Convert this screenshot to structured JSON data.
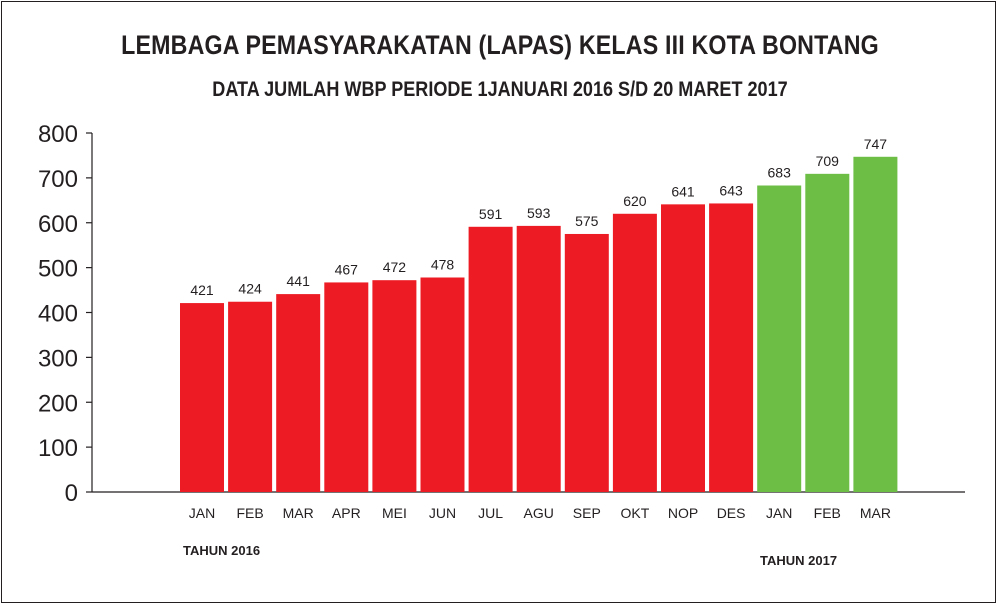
{
  "chart_data": {
    "type": "bar",
    "title": "LEMBAGA PEMASYARAKATAN (LAPAS) KELAS III KOTA BONTANG",
    "subtitle": "DATA JUMLAH WBP PERIODE 1JANUARI 2016 S/D 20 MARET 2017",
    "categories": [
      "JAN",
      "FEB",
      "MAR",
      "APR",
      "MEI",
      "JUN",
      "JUL",
      "AGU",
      "SEP",
      "OKT",
      "NOP",
      "DES",
      "JAN",
      "FEB",
      "MAR"
    ],
    "values": [
      421,
      424,
      441,
      467,
      472,
      478,
      591,
      593,
      575,
      620,
      641,
      643,
      683,
      709,
      747
    ],
    "data_labels": [
      "421",
      "424",
      "441",
      "467",
      "472",
      "478",
      "591",
      "593",
      "575",
      "620",
      "641",
      "643",
      "683",
      "709",
      "747"
    ],
    "groups": [
      {
        "label": "TAHUN 2016",
        "count": 12,
        "color": "#ed1c24"
      },
      {
        "label": "TAHUN 2017",
        "count": 3,
        "color": "#6cbe45"
      }
    ],
    "ylim": [
      0,
      800
    ],
    "yticks": [
      "0",
      "100",
      "200",
      "300",
      "400",
      "500",
      "600",
      "700",
      "800"
    ],
    "xlabel": "",
    "ylabel": "",
    "grid": false,
    "legend": "none"
  }
}
